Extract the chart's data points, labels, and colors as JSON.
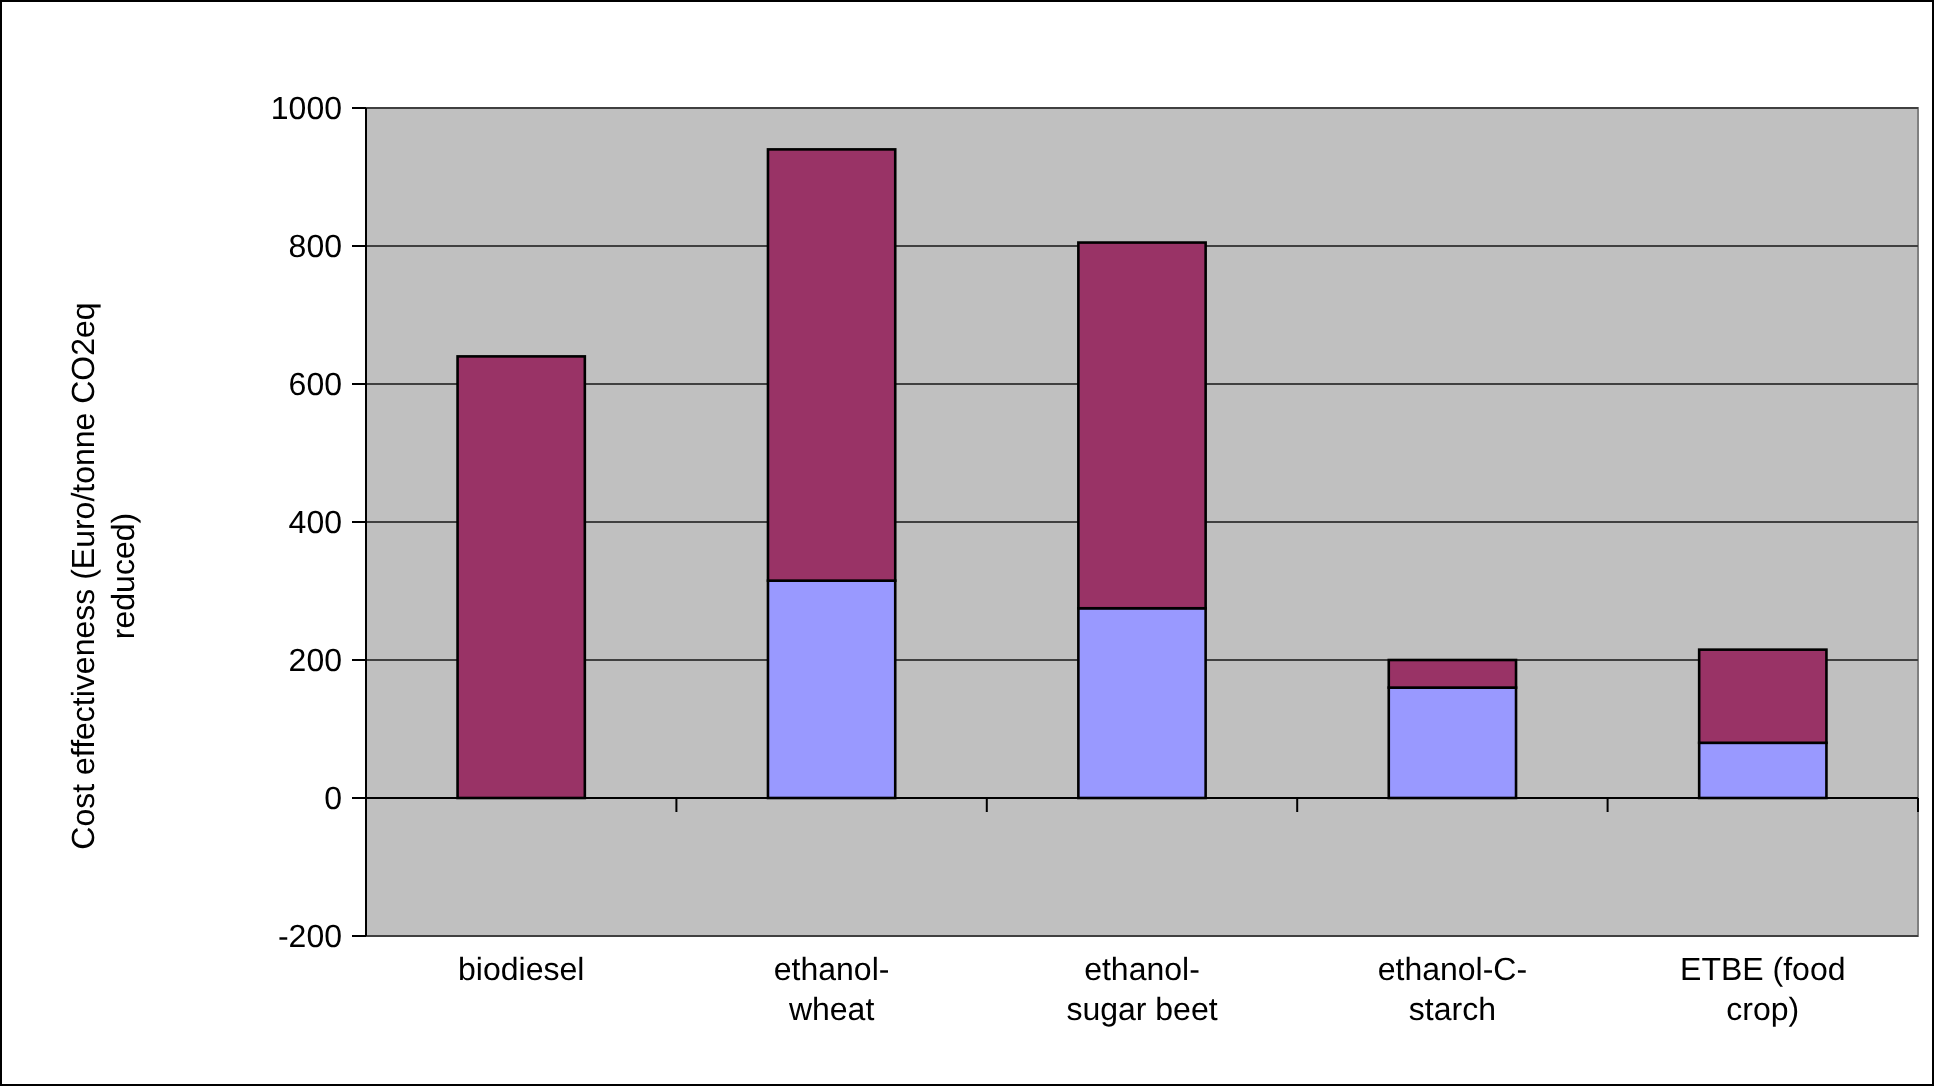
{
  "chart_data": {
    "type": "bar",
    "stacked": true,
    "ylabel": "Cost effectiveness (Euro/tonne CO2eq reduced)",
    "categories": [
      "biodiesel",
      "ethanol-wheat",
      "ethanol-sugar beet",
      "ethanol-C-starch",
      "ETBE (food crop)"
    ],
    "series": [
      {
        "color": "#9999ff",
        "values": [
          0,
          315,
          275,
          160,
          80
        ]
      },
      {
        "color": "#993366",
        "values": [
          640,
          625,
          530,
          40,
          135
        ]
      }
    ],
    "ylim": [
      -200,
      1000
    ],
    "yticks": [
      -200,
      0,
      200,
      400,
      600,
      800,
      1000
    ],
    "grid": "y"
  }
}
